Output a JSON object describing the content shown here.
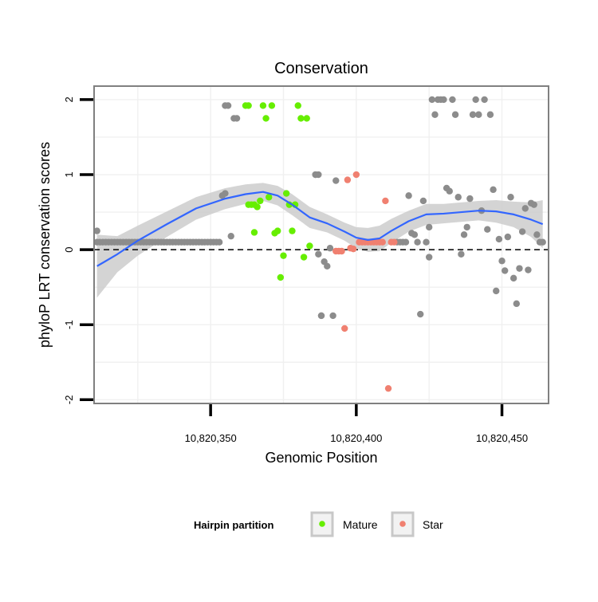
{
  "chart_data": {
    "type": "scatter",
    "title": "Conservation",
    "xlabel": "Genomic Position",
    "ylabel": "phyloP LRT conservation scores",
    "xlim": [
      10820310,
      10820466
    ],
    "ylim": [
      -2.05,
      2.18
    ],
    "x_ticks": [
      10820350,
      10820400,
      10820450
    ],
    "x_tick_labels": [
      "10,820,350",
      "10,820,400",
      "10,820,450"
    ],
    "y_ticks": [
      -2,
      -1,
      0,
      1,
      2
    ],
    "y_tick_labels": [
      "-2",
      "-1",
      "0",
      "1",
      "2"
    ],
    "reference_line": {
      "y": 0,
      "style": "dashed"
    },
    "grid": true,
    "colors": {
      "other": "#8c8c8c",
      "mature": "#66ee00",
      "star": "#f08070",
      "smooth": "#3366ff",
      "band": "#cccccc"
    },
    "legend": {
      "title": "Hairpin partition",
      "position": "bottom",
      "entries": [
        {
          "label": "Mature",
          "color": "#66ee00"
        },
        {
          "label": "Star",
          "color": "#f08070"
        }
      ]
    },
    "series": [
      {
        "name": "Other",
        "x": [
          10820311,
          10820312,
          10820313,
          10820314,
          10820315,
          10820316,
          10820317,
          10820318,
          10820319,
          10820320,
          10820321,
          10820322,
          10820323,
          10820324,
          10820325,
          10820326,
          10820327,
          10820328,
          10820329,
          10820330,
          10820331,
          10820332,
          10820333,
          10820334,
          10820335,
          10820336,
          10820337,
          10820338,
          10820339,
          10820340,
          10820341,
          10820342,
          10820343,
          10820344,
          10820345,
          10820346,
          10820347,
          10820348,
          10820349,
          10820350,
          10820351,
          10820352,
          10820353,
          10820311,
          10820354,
          10820355,
          10820356,
          10820357,
          10820355,
          10820358,
          10820359,
          10820386,
          10820387,
          10820388,
          10820386,
          10820387,
          10820388,
          10820389,
          10820390,
          10820391,
          10820392,
          10820393,
          10820414,
          10820415,
          10820416,
          10820417,
          10820418,
          10820419,
          10820420,
          10820421,
          10820422,
          10820423,
          10820424,
          10820425,
          10820425,
          10820426,
          10820427,
          10820428,
          10820429,
          10820430,
          10820431,
          10820432,
          10820433,
          10820434,
          10820435,
          10820436,
          10820437,
          10820438,
          10820439,
          10820440,
          10820441,
          10820442,
          10820443,
          10820444,
          10820445,
          10820446,
          10820447,
          10820448,
          10820449,
          10820450,
          10820451,
          10820452,
          10820453,
          10820454,
          10820455,
          10820456,
          10820457,
          10820458,
          10820459,
          10820460,
          10820461,
          10820462,
          10820463,
          10820464
        ],
        "y": [
          0.1,
          0.1,
          0.1,
          0.1,
          0.1,
          0.1,
          0.1,
          0.1,
          0.1,
          0.1,
          0.1,
          0.1,
          0.1,
          0.1,
          0.1,
          0.1,
          0.1,
          0.1,
          0.1,
          0.1,
          0.1,
          0.1,
          0.1,
          0.1,
          0.1,
          0.1,
          0.1,
          0.1,
          0.1,
          0.1,
          0.1,
          0.1,
          0.1,
          0.1,
          0.1,
          0.1,
          0.1,
          0.1,
          0.1,
          0.1,
          0.1,
          0.1,
          0.1,
          0.25,
          0.72,
          0.75,
          1.92,
          0.18,
          1.92,
          1.75,
          1.75,
          1.0,
          1.0,
          -0.88,
          1.0,
          -0.06,
          -0.88,
          -0.16,
          -0.22,
          0.02,
          -0.88,
          0.92,
          0.1,
          0.1,
          0.1,
          0.1,
          0.72,
          0.22,
          0.2,
          0.1,
          -0.86,
          0.65,
          0.1,
          0.3,
          -0.1,
          2.0,
          1.8,
          2.0,
          2.0,
          2.0,
          0.82,
          0.78,
          2.0,
          1.8,
          0.7,
          -0.06,
          0.2,
          0.3,
          0.68,
          1.8,
          2.0,
          1.8,
          0.52,
          2.0,
          0.27,
          1.8,
          0.8,
          -0.55,
          0.14,
          -0.15,
          -0.28,
          0.17,
          0.7,
          -0.38,
          -0.72,
          -0.25,
          0.24,
          0.55,
          -0.27,
          0.62,
          0.6,
          0.2,
          0.1,
          0.1
        ]
      },
      {
        "name": "Mature",
        "x": [
          10820362,
          10820363,
          10820363,
          10820364,
          10820365,
          10820366,
          10820367,
          10820368,
          10820369,
          10820370,
          10820371,
          10820372,
          10820373,
          10820374,
          10820375,
          10820376,
          10820377,
          10820378,
          10820379,
          10820380,
          10820381,
          10820382,
          10820383,
          10820384,
          10820365
        ],
        "y": [
          1.92,
          1.92,
          0.6,
          0.6,
          0.23,
          0.57,
          0.65,
          1.92,
          1.75,
          0.7,
          1.92,
          0.22,
          0.25,
          -0.37,
          -0.08,
          0.75,
          0.6,
          0.25,
          0.6,
          1.92,
          1.75,
          -0.1,
          1.75,
          0.05,
          0.6
        ]
      },
      {
        "name": "Star",
        "x": [
          10820393,
          10820394,
          10820395,
          10820396,
          10820397,
          10820398,
          10820399,
          10820400,
          10820401,
          10820402,
          10820403,
          10820404,
          10820405,
          10820406,
          10820407,
          10820408,
          10820409,
          10820410,
          10820411,
          10820412,
          10820413
        ],
        "y": [
          -0.02,
          -0.02,
          -0.02,
          -1.05,
          0.93,
          0.02,
          0.01,
          1.0,
          0.1,
          0.1,
          0.1,
          0.1,
          0.1,
          0.1,
          0.1,
          0.1,
          0.1,
          0.65,
          -1.85,
          0.1,
          0.1
        ]
      },
      {
        "name": "Smooth fit",
        "type": "line",
        "x": [
          10820311,
          10820318,
          10820325,
          10820335,
          10820345,
          10820355,
          10820362,
          10820368,
          10820373,
          10820378,
          10820384,
          10820390,
          10820396,
          10820400,
          10820404,
          10820408,
          10820412,
          10820418,
          10820424,
          10820430,
          10820436,
          10820442,
          10820448,
          10820454,
          10820460,
          10820464
        ],
        "y": [
          -0.22,
          -0.06,
          0.12,
          0.34,
          0.55,
          0.68,
          0.74,
          0.77,
          0.72,
          0.6,
          0.43,
          0.35,
          0.24,
          0.16,
          0.13,
          0.15,
          0.25,
          0.38,
          0.47,
          0.48,
          0.5,
          0.52,
          0.51,
          0.47,
          0.4,
          0.34
        ],
        "lower": [
          -0.64,
          -0.3,
          -0.08,
          0.17,
          0.4,
          0.54,
          0.61,
          0.65,
          0.59,
          0.46,
          0.29,
          0.23,
          0.12,
          0.02,
          -0.03,
          -0.02,
          0.09,
          0.24,
          0.33,
          0.35,
          0.37,
          0.39,
          0.36,
          0.3,
          0.17,
          0.02
        ],
        "upper": [
          0.2,
          0.18,
          0.32,
          0.51,
          0.7,
          0.82,
          0.87,
          0.89,
          0.85,
          0.74,
          0.57,
          0.47,
          0.36,
          0.3,
          0.29,
          0.32,
          0.41,
          0.52,
          0.61,
          0.61,
          0.63,
          0.65,
          0.66,
          0.64,
          0.63,
          0.66
        ]
      }
    ]
  }
}
